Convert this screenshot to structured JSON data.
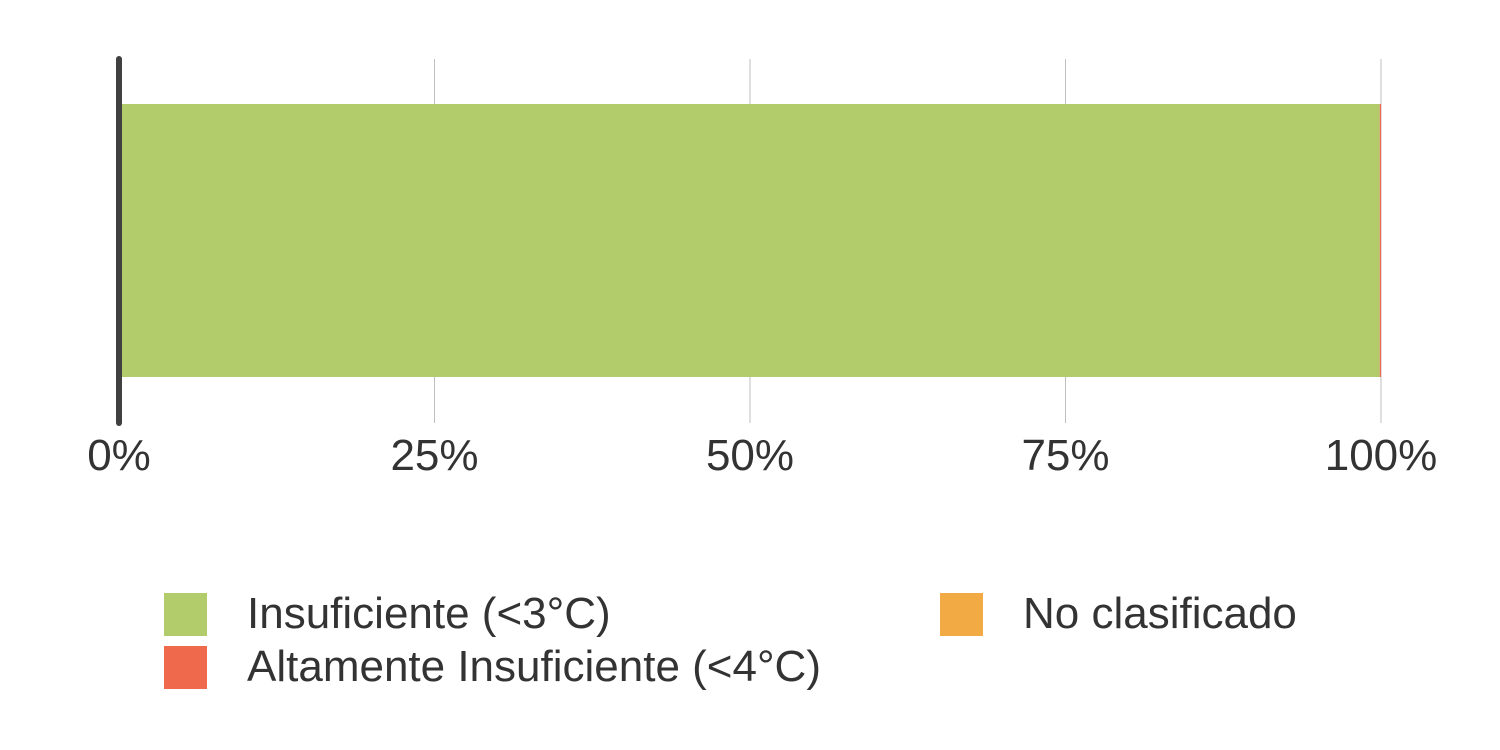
{
  "chart_data": {
    "type": "bar",
    "orientation": "horizontal",
    "stacked": true,
    "categories": [
      ""
    ],
    "series": [
      {
        "name": "Insuficiente (<3°C)",
        "values": [
          99.9
        ],
        "color": "#b3cc6b"
      },
      {
        "name": "Altamente Insuficiente (<4°C)",
        "values": [
          0.1
        ],
        "color": "#ef6a4d"
      },
      {
        "name": "No clasificado",
        "values": [
          0
        ],
        "color": "#f2ab44"
      }
    ],
    "x_ticks": [
      "0%",
      "25%",
      "50%",
      "75%",
      "100%"
    ],
    "xlim": [
      0,
      100
    ],
    "grid": true,
    "legend_position": "bottom"
  },
  "colors": {
    "axis": "#404040",
    "grid": "#bfbfbf",
    "text": "#333333"
  }
}
